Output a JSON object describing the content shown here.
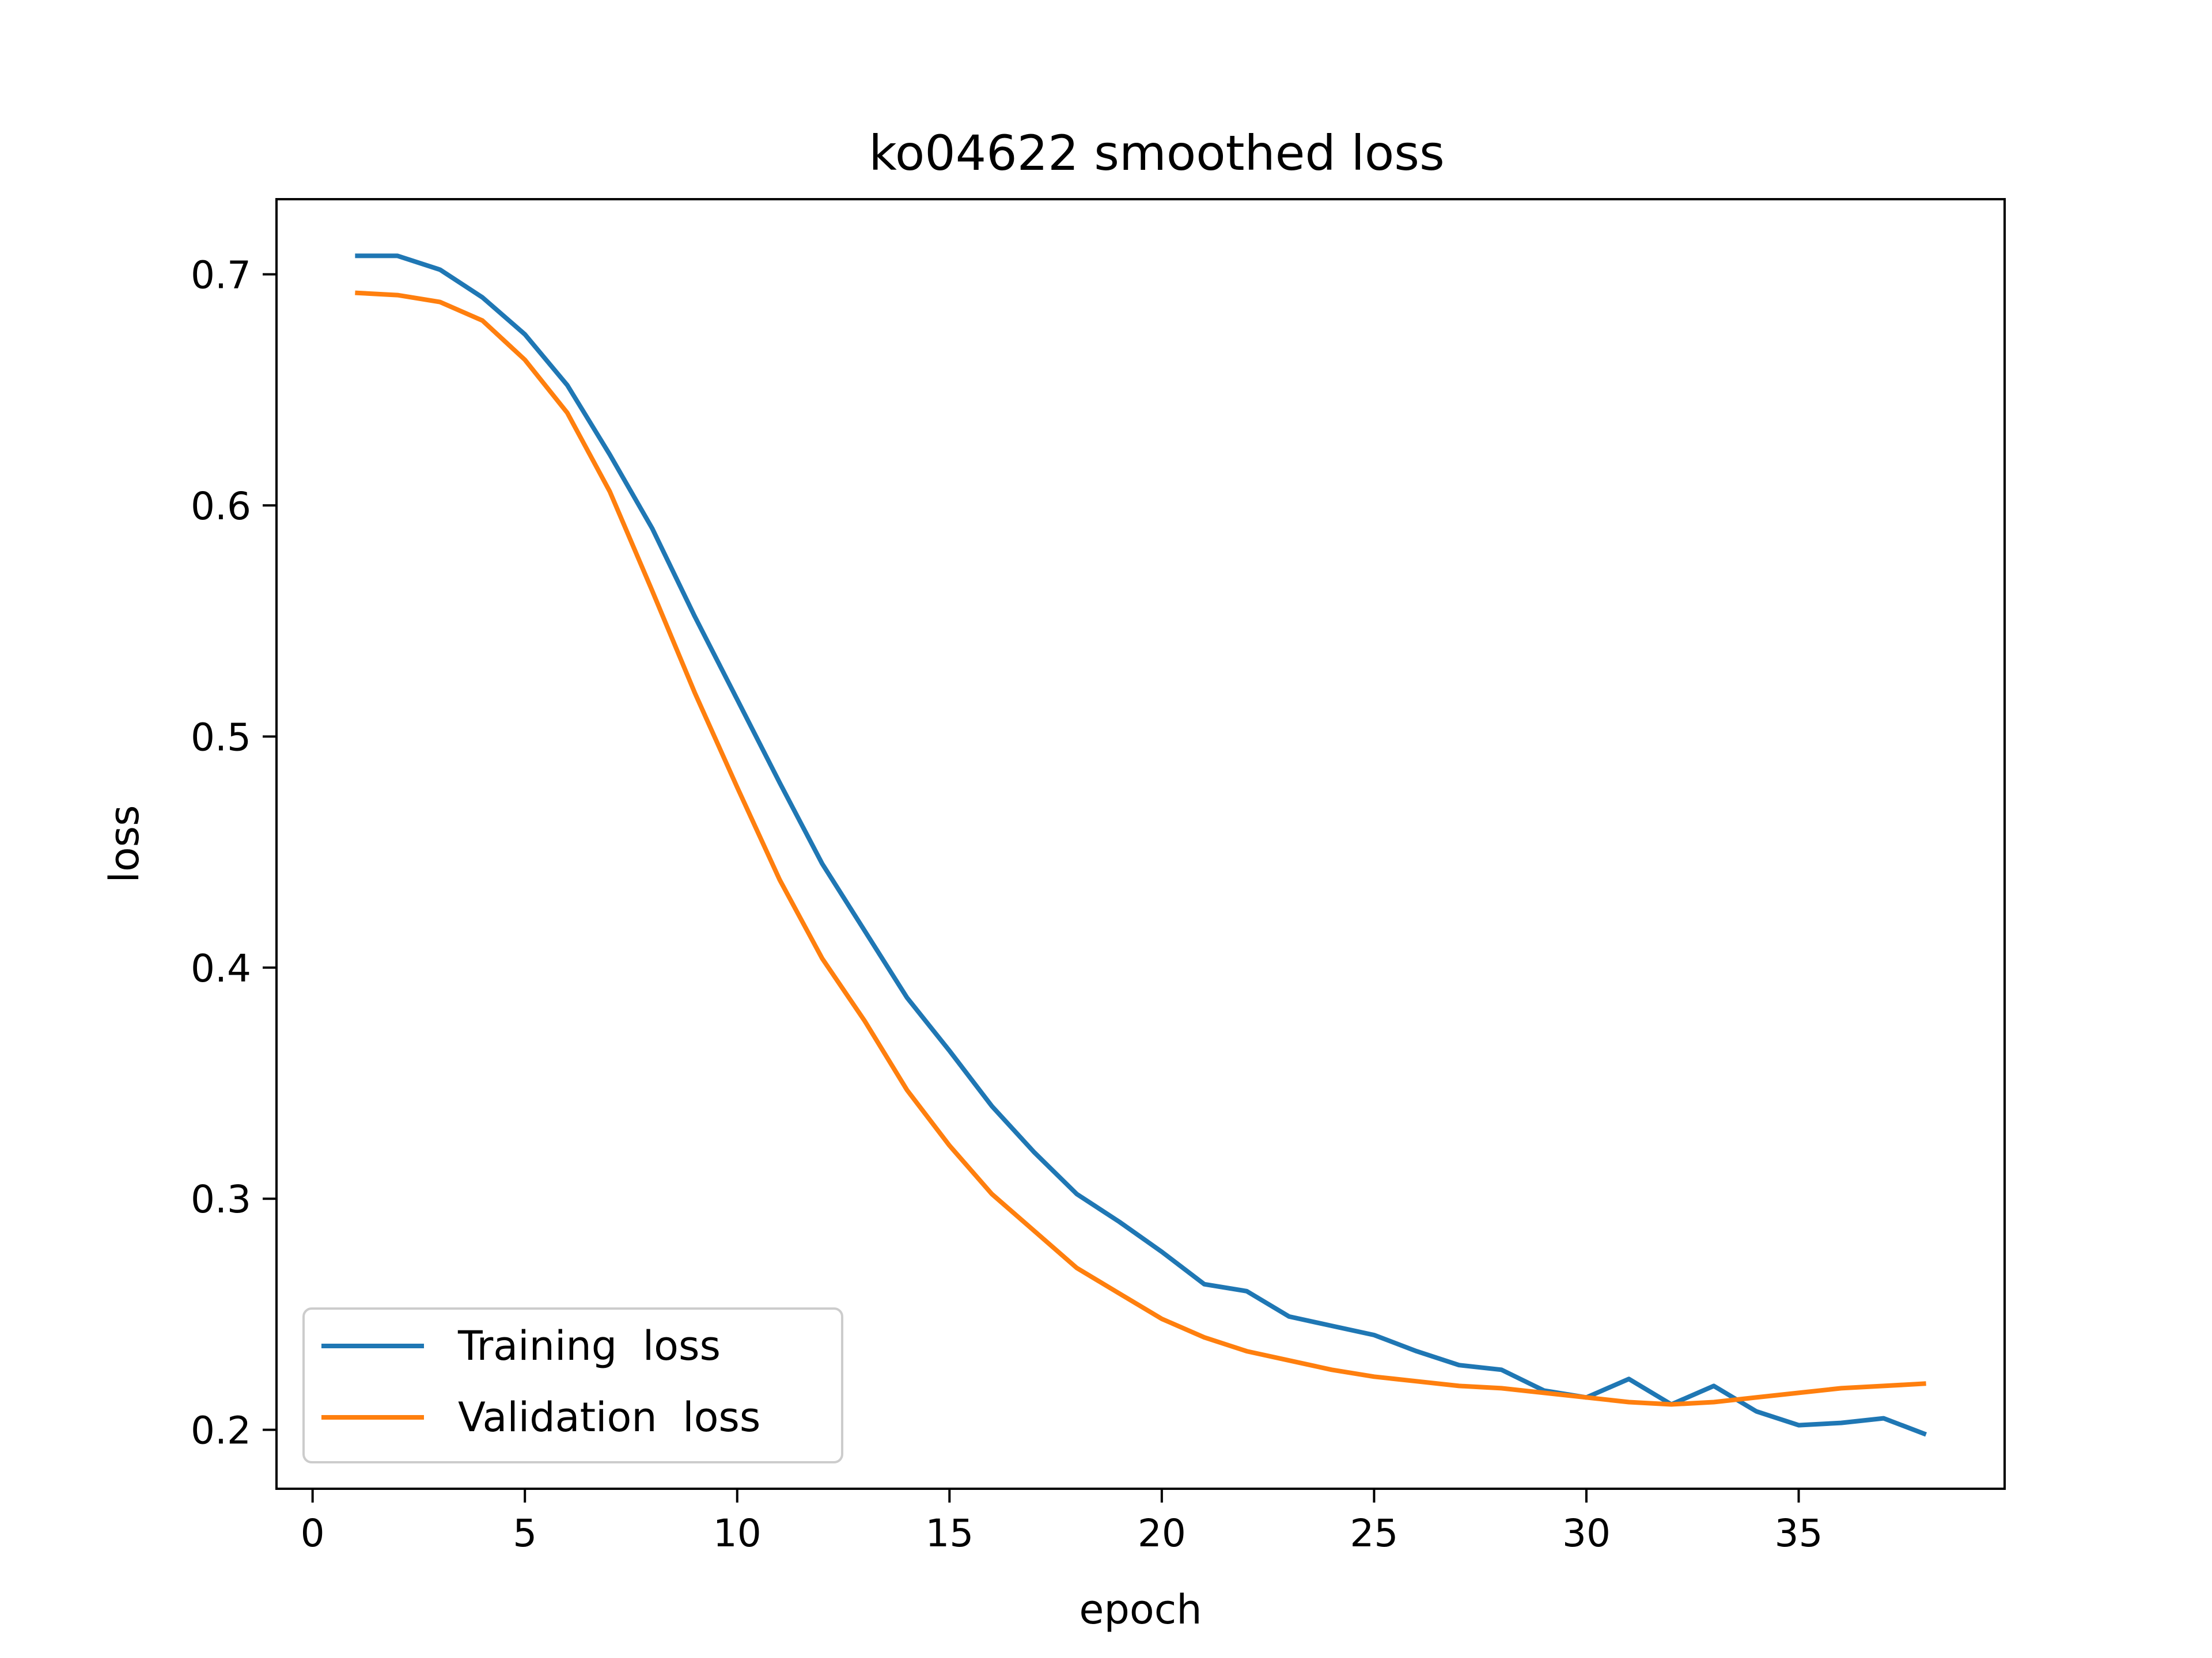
{
  "chart_data": {
    "type": "line",
    "title": "ko04622 smoothed loss",
    "xlabel": "epoch",
    "ylabel": "loss",
    "xlim": [
      -0.85,
      39.85
    ],
    "ylim": [
      0.1745,
      0.7325
    ],
    "xticks": [
      0,
      5,
      10,
      15,
      20,
      25,
      30,
      35
    ],
    "yticks": [
      0.2,
      0.3,
      0.4,
      0.5,
      0.6,
      0.7
    ],
    "ytick_labels": [
      "0.2",
      "0.3",
      "0.4",
      "0.5",
      "0.6",
      "0.7"
    ],
    "grid": false,
    "legend": "lower-left",
    "x": [
      1,
      2,
      3,
      4,
      5,
      6,
      7,
      8,
      9,
      10,
      11,
      12,
      13,
      14,
      15,
      16,
      17,
      18,
      19,
      20,
      21,
      22,
      23,
      24,
      25,
      26,
      27,
      28,
      29,
      30,
      31,
      32,
      33,
      34,
      35,
      36,
      37,
      38
    ],
    "series": [
      {
        "name": "Training  loss",
        "color": "#1f77b4",
        "values": [
          0.708,
          0.708,
          0.702,
          0.69,
          0.674,
          0.652,
          0.622,
          0.59,
          0.552,
          0.516,
          0.48,
          0.445,
          0.416,
          0.387,
          0.364,
          0.34,
          0.32,
          0.302,
          0.29,
          0.277,
          0.263,
          0.26,
          0.249,
          0.245,
          0.241,
          0.234,
          0.228,
          0.226,
          0.217,
          0.214,
          0.222,
          0.211,
          0.219,
          0.208,
          0.202,
          0.203,
          0.205,
          0.198
        ]
      },
      {
        "name": "Validation  loss",
        "color": "#ff7f0e",
        "values": [
          0.692,
          0.691,
          0.688,
          0.68,
          0.663,
          0.64,
          0.606,
          0.563,
          0.519,
          0.478,
          0.438,
          0.404,
          0.377,
          0.347,
          0.323,
          0.302,
          0.286,
          0.27,
          0.259,
          0.248,
          0.24,
          0.234,
          0.23,
          0.226,
          0.223,
          0.221,
          0.219,
          0.218,
          0.216,
          0.214,
          0.212,
          0.211,
          0.212,
          0.214,
          0.216,
          0.218,
          0.219,
          0.22
        ]
      }
    ]
  }
}
